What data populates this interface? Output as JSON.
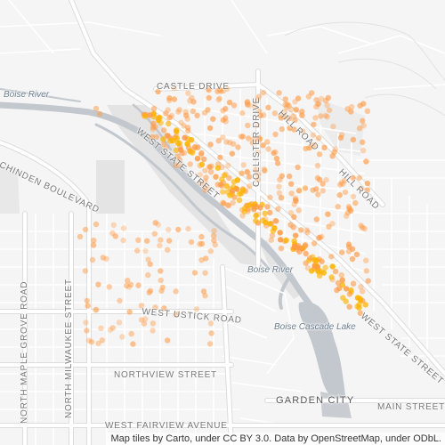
{
  "map": {
    "labels": {
      "castle_drive": "CASTLE DRIVE",
      "boise_river_west": "Boise River",
      "west_state_street_top": "WEST STATE STREET",
      "collister_drive": "COLLISTER DRIVE",
      "hill_road_left": "HILL ROAD",
      "hill_road_right": "HILL ROAD",
      "chinden_boulevard": "CHINDEN BOULEVARD",
      "boise_river_center": "Boise River",
      "west_ustick_road": "WEST USTICK ROAD",
      "boise_cascade_lake": "Boise Cascade Lake",
      "west_state_street_bottom": "WEST STATE STREET",
      "north_maple_grove_road": "NORTH MAPLE GROVE ROAD",
      "north_milwaukee_street": "NORTH MILWAUKEE STREET",
      "northview_street": "NORTHVIEW STREET",
      "garden_city": "GARDEN CITY",
      "main_street": "MAIN STREET",
      "west_fairview_avenue": "WEST FAIRVIEW AVENUE"
    },
    "attribution": "Map tiles by Carto, under CC BY 3.0. Data by OpenStreetMap, under ODbL.",
    "colors": {
      "background": "#f5f5f5",
      "road": "#ffffff",
      "road_casing": "#dcdcdc",
      "water": "#c3c8ce",
      "park": "#e6e6e6",
      "label": "#777777",
      "point": "#ff9a45",
      "point_dense": "#ffb300"
    }
  }
}
